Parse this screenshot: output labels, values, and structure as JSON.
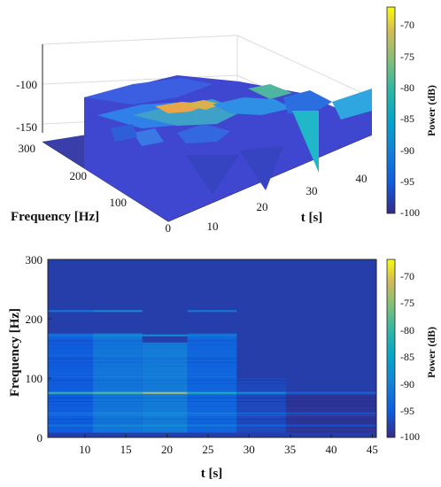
{
  "chart_data": [
    {
      "type": "surface",
      "xlabel": "t [s]",
      "ylabel": "Frequency [Hz]",
      "zlabel": "",
      "x_ticks": [
        "10",
        "20",
        "30",
        "40"
      ],
      "y_ticks": [
        "0",
        "100",
        "200",
        "300"
      ],
      "z_ticks": [
        "-100",
        "-150"
      ],
      "xlim": [
        5,
        45
      ],
      "ylim": [
        0,
        300
      ],
      "zlim": [
        -160,
        -60
      ],
      "colorbar": {
        "label": "Power (dB)",
        "ticks": [
          "-70",
          "-75",
          "-80",
          "-85",
          "-90",
          "-95",
          "-100"
        ],
        "range": [
          -100,
          -67
        ],
        "colormap": "parula"
      },
      "surface_profile": {
        "t": [
          5,
          10,
          15,
          20,
          25,
          30,
          35,
          40,
          45
        ],
        "peak_power_db": [
          -96,
          -95,
          -90,
          -70,
          -78,
          -85,
          -95,
          -98,
          -98
        ],
        "peak_frequency_hz": 75
      },
      "grid": true
    },
    {
      "type": "heatmap",
      "xlabel": "t [s]",
      "ylabel": "Frequency [Hz]",
      "x_ticks": [
        "10",
        "15",
        "20",
        "25",
        "30",
        "35",
        "40",
        "45"
      ],
      "y_ticks": [
        "0",
        "100",
        "200",
        "300"
      ],
      "xlim": [
        5.5,
        45.5
      ],
      "ylim": [
        0,
        300
      ],
      "colorbar": {
        "label": "Power (dB)",
        "ticks": [
          "-70",
          "-75",
          "-80",
          "-85",
          "-90",
          "-95",
          "-100"
        ],
        "range": [
          -100,
          -67
        ],
        "colormap": "parula"
      },
      "background_db": -98,
      "segments": [
        {
          "t_start": 5.5,
          "t_end": 11,
          "band_top_hz": 175,
          "band_db": -95,
          "line_db": -80
        },
        {
          "t_start": 11,
          "t_end": 17,
          "band_top_hz": 175,
          "band_db": -92,
          "line_db": -78
        },
        {
          "t_start": 17,
          "t_end": 22.5,
          "band_top_hz": 160,
          "band_db": -91,
          "line_db": -73
        },
        {
          "t_start": 22.5,
          "t_end": 28.5,
          "band_top_hz": 175,
          "band_db": -94,
          "line_db": -82
        },
        {
          "t_start": 28.5,
          "t_end": 34.5,
          "band_top_hz": 100,
          "band_db": -97,
          "line_db": -88
        },
        {
          "t_start": 34.5,
          "t_end": 45.5,
          "band_top_hz": 75,
          "band_db": -99,
          "line_db": -94
        }
      ],
      "lines_hz": [
        75,
        213,
        172,
        40,
        20
      ],
      "main_line_hz": 75
    }
  ]
}
